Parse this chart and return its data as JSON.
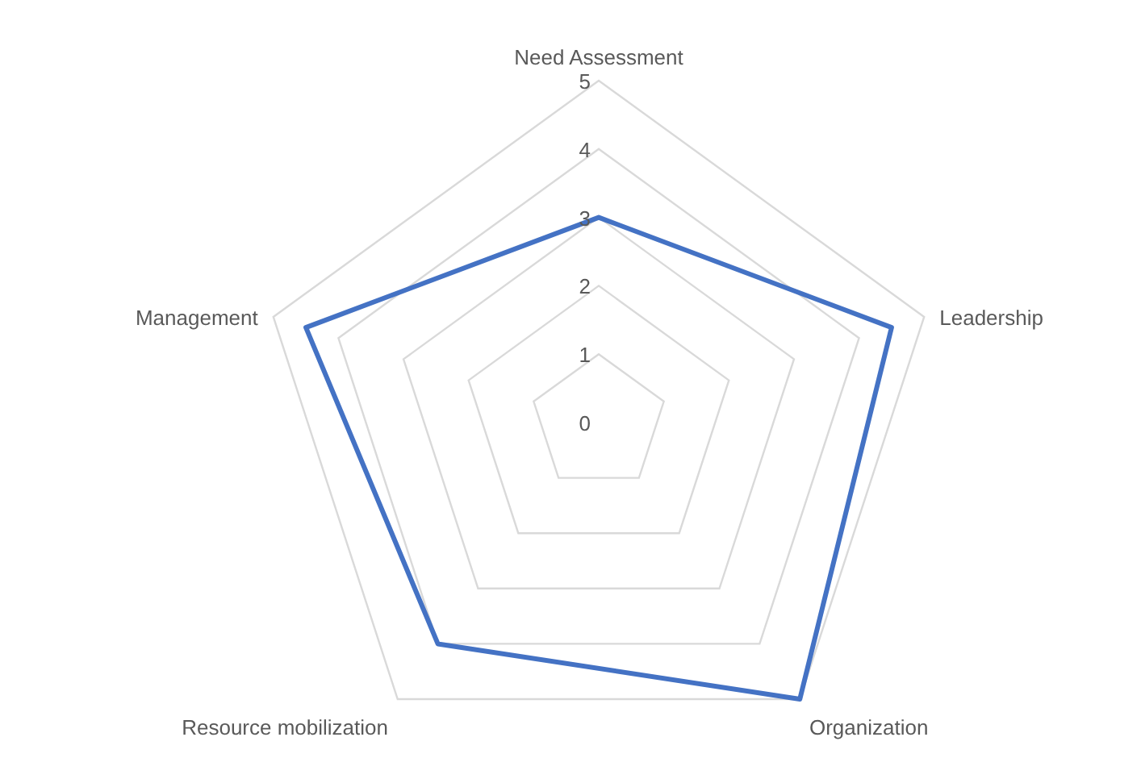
{
  "chart_data": {
    "type": "radar",
    "categories": [
      "Need Assessment",
      "Leadership",
      "Organization",
      "Resource mobilization",
      "Management"
    ],
    "series": [
      {
        "color": "#4472c4",
        "values": [
          3,
          4.5,
          5,
          4,
          4.5
        ]
      }
    ],
    "ylim": [
      0,
      5
    ],
    "yticks": [
      0,
      1,
      2,
      3,
      4,
      5
    ],
    "grid": true
  }
}
